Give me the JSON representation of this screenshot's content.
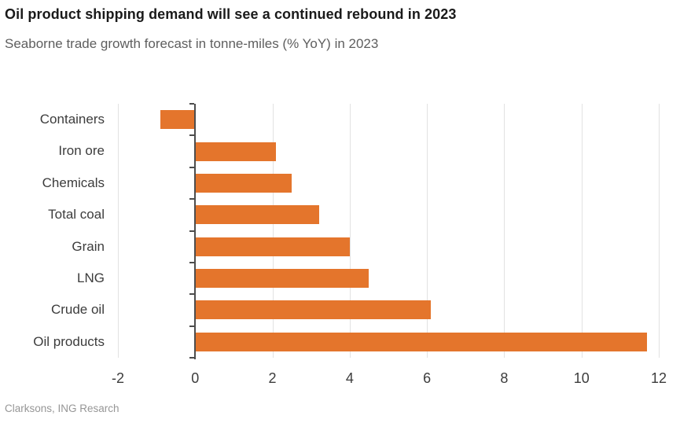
{
  "header": {
    "title": "Oil product shipping demand will see a continued rebound in 2023",
    "subtitle": "Seaborne trade growth forecast in tonne-miles (% YoY) in 2023"
  },
  "footer": {
    "source": "Clarksons, ING Resarch"
  },
  "chart_data": {
    "type": "bar",
    "orientation": "horizontal",
    "title": "Oil product shipping demand will see a continued rebound in 2023",
    "subtitle": "Seaborne trade growth forecast in tonne-miles (% YoY) in 2023",
    "source": "Clarksons, ING Resarch",
    "categories": [
      "Containers",
      "Iron ore",
      "Chemicals",
      "Total coal",
      "Grain",
      "LNG",
      "Crude oil",
      "Oil products"
    ],
    "values": [
      -0.9,
      2.1,
      2.5,
      3.2,
      4.0,
      4.5,
      6.1,
      11.7
    ],
    "xlabel": "",
    "ylabel": "",
    "xlim": [
      -2,
      12
    ],
    "xticks": [
      -2,
      0,
      2,
      4,
      6,
      8,
      10,
      12
    ],
    "grid": "vertical",
    "legend": false,
    "colors": {
      "bar": "#e4752c",
      "gridline": "#e2e2e2",
      "zero_axis": "#4d4d4d",
      "title": "#1a1a1a",
      "subtitle": "#5e5e5e",
      "category_label": "#3c3c3c",
      "tick_label": "#3c3c3c",
      "source": "#969696",
      "background": "#ffffff"
    }
  }
}
